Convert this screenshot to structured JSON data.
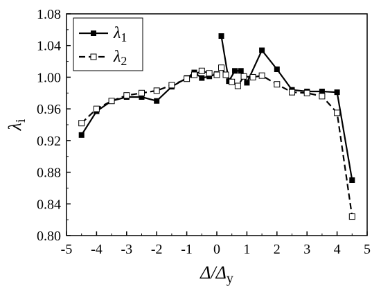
{
  "chart_data": {
    "type": "line",
    "xlabel": {
      "main": "Δ/Δ",
      "sub": "y"
    },
    "ylabel": {
      "main": "λ",
      "sub": "i"
    },
    "xlim": [
      -5,
      5
    ],
    "ylim": [
      0.8,
      1.08
    ],
    "x_ticks": [
      "-5",
      "-4",
      "-3",
      "-2",
      "-1",
      "0",
      "1",
      "2",
      "3",
      "4",
      "5"
    ],
    "y_ticks": [
      "0.80",
      "0.84",
      "0.88",
      "0.92",
      "0.96",
      "1.00",
      "1.04",
      "1.08"
    ],
    "legend_position": "top-left",
    "series": [
      {
        "name": "λ1",
        "legend_main": "λ",
        "legend_sub": "1",
        "color": "#000000",
        "marker": "filled-square",
        "line": "solid",
        "segments": [
          [
            {
              "x": -4.5,
              "y": 0.927
            },
            {
              "x": -4.0,
              "y": 0.957
            },
            {
              "x": -3.5,
              "y": 0.97
            },
            {
              "x": -3.0,
              "y": 0.975
            },
            {
              "x": -2.5,
              "y": 0.975
            },
            {
              "x": -2.0,
              "y": 0.97
            },
            {
              "x": -1.5,
              "y": 0.988
            },
            {
              "x": -1.0,
              "y": 0.999
            },
            {
              "x": -0.75,
              "y": 1.006
            },
            {
              "x": -0.5,
              "y": 0.999
            },
            {
              "x": -0.25,
              "y": 1.001
            },
            {
              "x": 0.0,
              "y": 1.004
            }
          ],
          [
            {
              "x": 0.15,
              "y": 1.052
            },
            {
              "x": 0.4,
              "y": 0.995
            },
            {
              "x": 0.6,
              "y": 1.008
            },
            {
              "x": 0.8,
              "y": 1.008
            },
            {
              "x": 1.0,
              "y": 0.993
            },
            {
              "x": 1.5,
              "y": 1.034
            },
            {
              "x": 2.0,
              "y": 1.01
            },
            {
              "x": 2.5,
              "y": 0.984
            },
            {
              "x": 3.0,
              "y": 0.982
            },
            {
              "x": 3.5,
              "y": 0.982
            },
            {
              "x": 4.0,
              "y": 0.981
            },
            {
              "x": 4.5,
              "y": 0.87
            }
          ]
        ]
      },
      {
        "name": "λ2",
        "legend_main": "λ",
        "legend_sub": "2",
        "color": "#000000",
        "marker": "open-square",
        "line": "dashed",
        "segments": [
          [
            {
              "x": -4.5,
              "y": 0.942
            },
            {
              "x": -4.0,
              "y": 0.96
            },
            {
              "x": -3.5,
              "y": 0.97
            },
            {
              "x": -3.0,
              "y": 0.977
            },
            {
              "x": -2.5,
              "y": 0.98
            },
            {
              "x": -2.0,
              "y": 0.983
            },
            {
              "x": -1.5,
              "y": 0.99
            },
            {
              "x": -1.0,
              "y": 0.998
            },
            {
              "x": -0.75,
              "y": 1.003
            },
            {
              "x": -0.5,
              "y": 1.008
            },
            {
              "x": -0.25,
              "y": 1.005
            },
            {
              "x": 0.0,
              "y": 1.003
            }
          ],
          [
            {
              "x": 0.15,
              "y": 1.012
            },
            {
              "x": 0.3,
              "y": 1.003
            },
            {
              "x": 0.5,
              "y": 0.994
            },
            {
              "x": 0.7,
              "y": 0.989
            },
            {
              "x": 0.9,
              "y": 1.001
            },
            {
              "x": 1.2,
              "y": 1.0
            },
            {
              "x": 1.5,
              "y": 1.002
            },
            {
              "x": 2.0,
              "y": 0.991
            },
            {
              "x": 2.5,
              "y": 0.981
            },
            {
              "x": 3.0,
              "y": 0.98
            },
            {
              "x": 3.5,
              "y": 0.976
            },
            {
              "x": 4.0,
              "y": 0.955
            },
            {
              "x": 4.5,
              "y": 0.824
            }
          ]
        ]
      }
    ]
  }
}
